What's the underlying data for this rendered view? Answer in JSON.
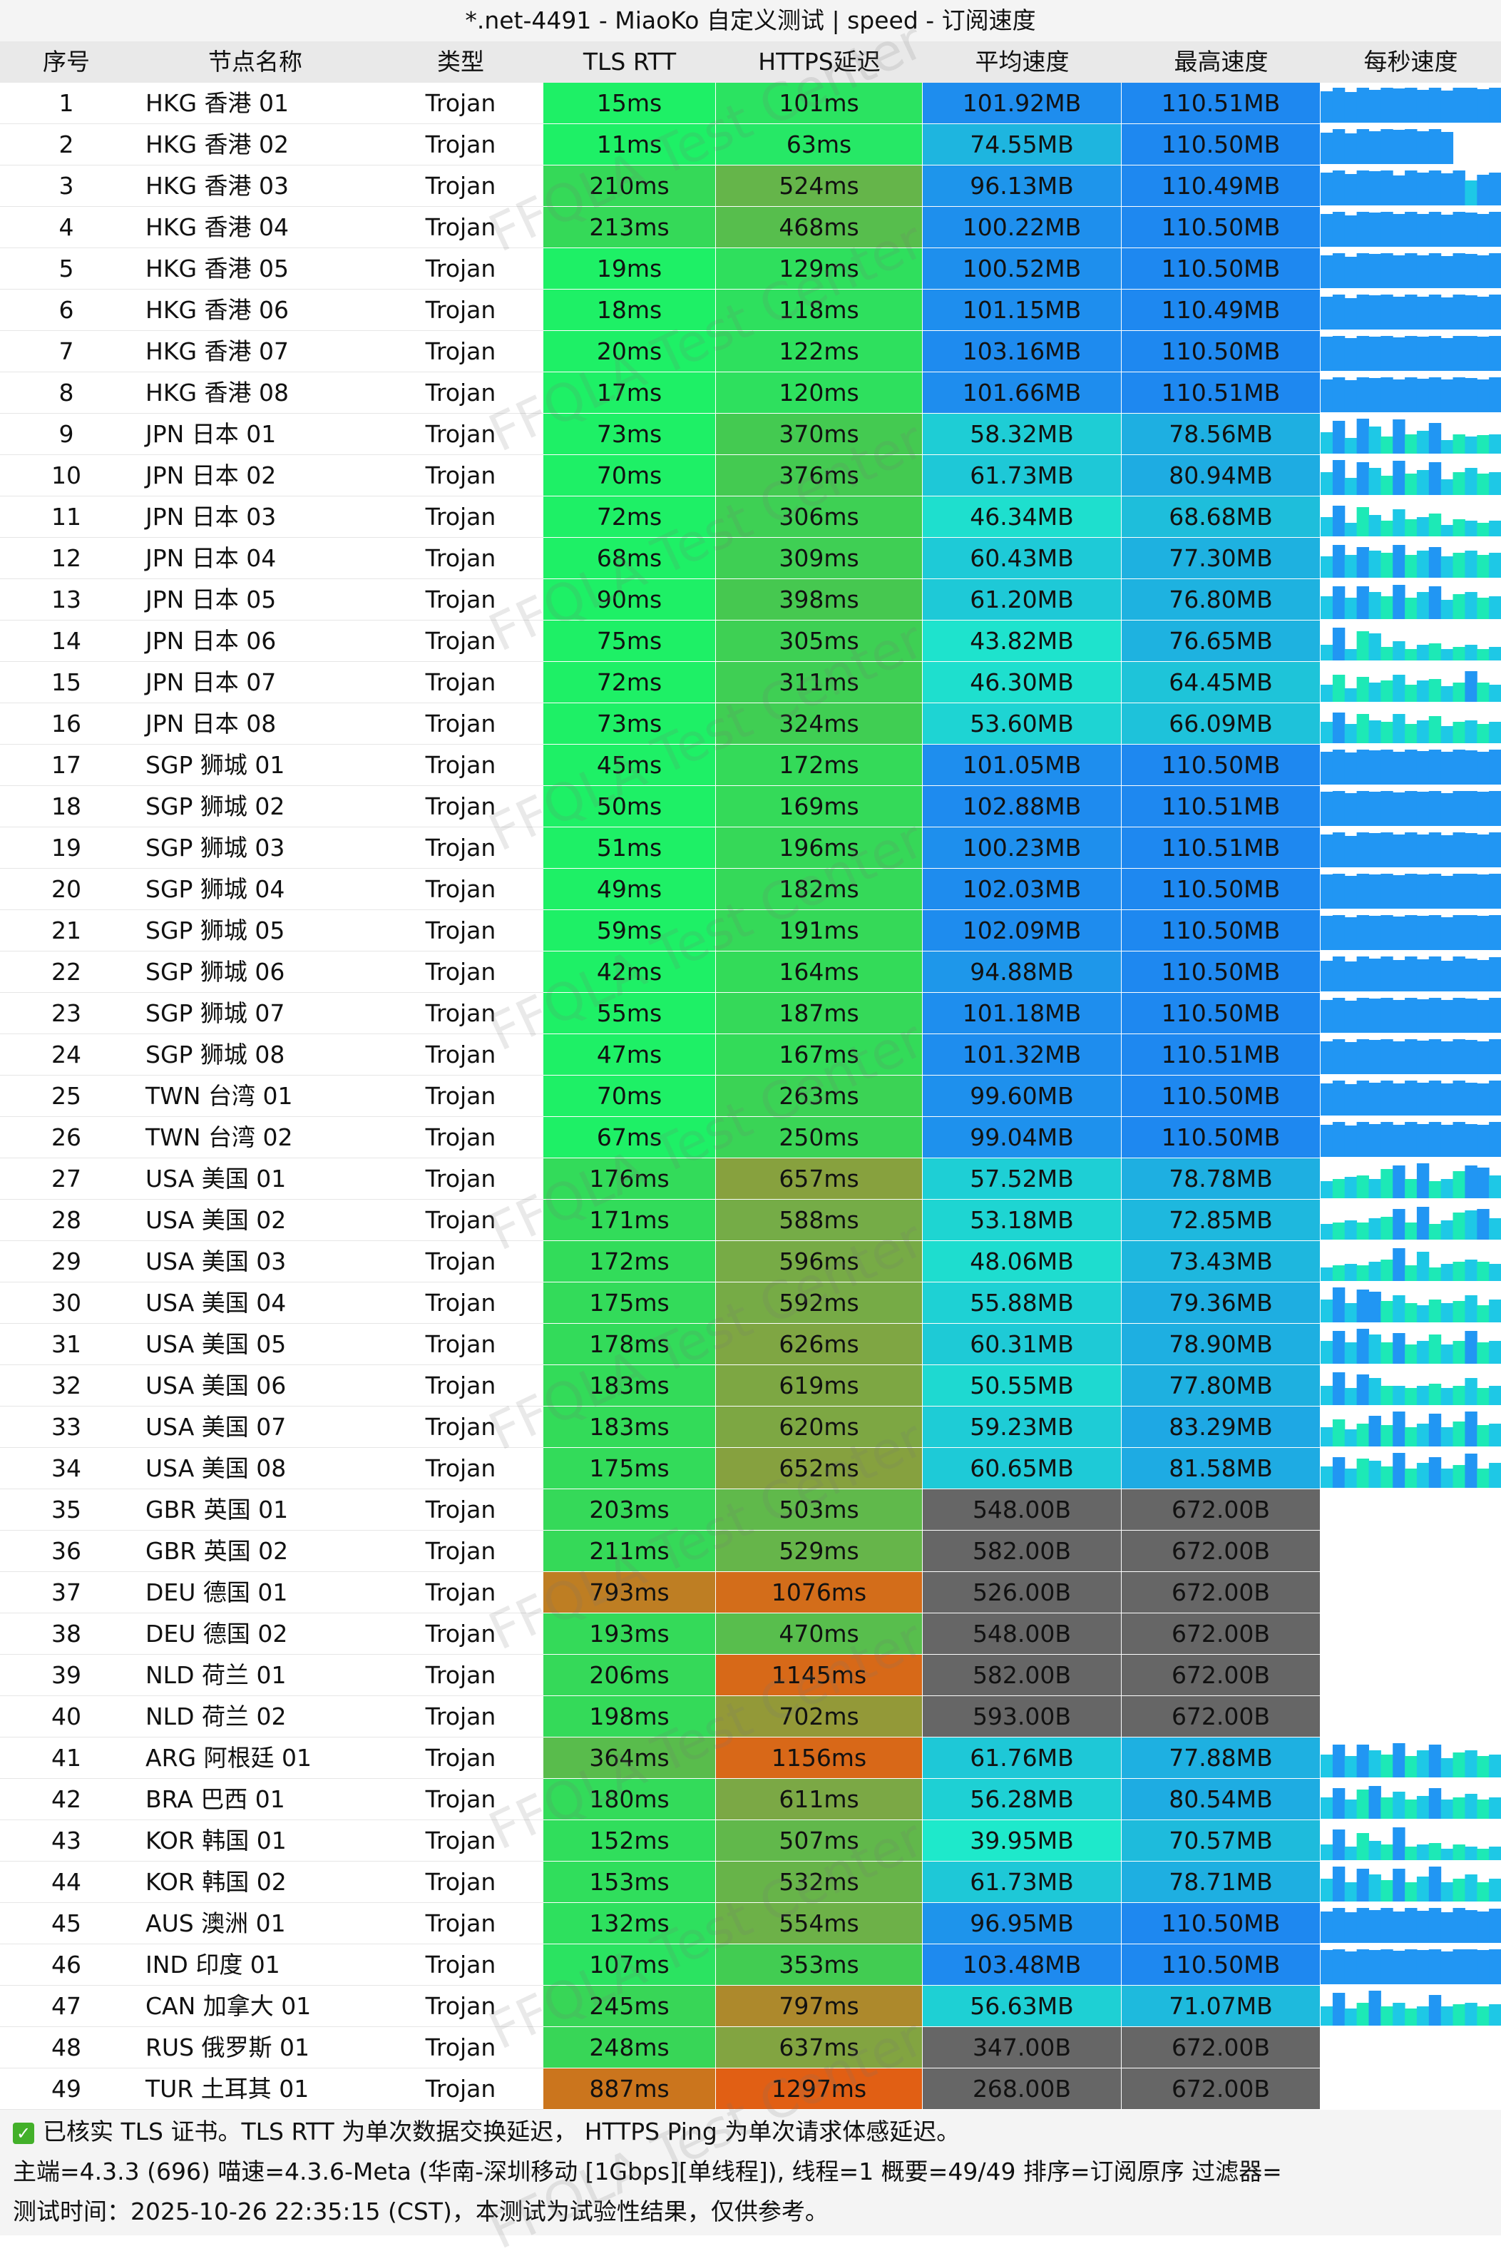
{
  "title": "*.net-4491 - MiaoKo 自定义测试 | speed - 订阅速度",
  "headers": [
    "序号",
    "节点名称",
    "类型",
    "TLS RTT",
    "HTTPS延迟",
    "平均速度",
    "最高速度",
    "每秒速度"
  ],
  "rows": [
    {
      "idx": "1",
      "name": "HKG 香港 01",
      "type": "Trojan",
      "tls": "15ms",
      "https": "101ms",
      "avg": "101.92MB",
      "max": "110.51MB",
      "spark": [
        0.82,
        0.9,
        0.8,
        0.9,
        0.85,
        0.9,
        0.88,
        0.9,
        0.86,
        0.9,
        0.84,
        0.9,
        0.9,
        0.87,
        0.9
      ]
    },
    {
      "idx": "2",
      "name": "HKG 香港 02",
      "type": "Trojan",
      "tls": "11ms",
      "https": "63ms",
      "avg": "74.55MB",
      "max": "110.50MB",
      "spark": [
        0.82,
        0.9,
        0.8,
        0.9,
        0.85,
        0.9,
        0.88,
        0.9,
        0.86,
        0.9,
        0.84,
        0,
        0,
        0,
        0
      ]
    },
    {
      "idx": "3",
      "name": "HKG 香港 03",
      "type": "Trojan",
      "tls": "210ms",
      "https": "524ms",
      "avg": "96.13MB",
      "max": "110.49MB",
      "spark": [
        0.85,
        0.9,
        0.82,
        0.9,
        0.88,
        0.9,
        0.78,
        0.9,
        0.86,
        0.9,
        0.84,
        0.9,
        0.65,
        0.8,
        0.85
      ]
    },
    {
      "idx": "4",
      "name": "HKG 香港 04",
      "type": "Trojan",
      "tls": "213ms",
      "https": "468ms",
      "avg": "100.22MB",
      "max": "110.50MB",
      "spark": [
        0.85,
        0.9,
        0.82,
        0.9,
        0.88,
        0.9,
        0.85,
        0.9,
        0.86,
        0.9,
        0.84,
        0.9,
        0.88,
        0.85,
        0.9
      ]
    },
    {
      "idx": "5",
      "name": "HKG 香港 05",
      "type": "Trojan",
      "tls": "19ms",
      "https": "129ms",
      "avg": "100.52MB",
      "max": "110.50MB",
      "spark": [
        0.85,
        0.9,
        0.82,
        0.9,
        0.88,
        0.9,
        0.85,
        0.9,
        0.86,
        0.9,
        0.84,
        0.9,
        0.88,
        0.85,
        0.9
      ]
    },
    {
      "idx": "6",
      "name": "HKG 香港 06",
      "type": "Trojan",
      "tls": "18ms",
      "https": "118ms",
      "avg": "101.15MB",
      "max": "110.49MB",
      "spark": [
        0.85,
        0.9,
        0.82,
        0.9,
        0.88,
        0.9,
        0.85,
        0.9,
        0.86,
        0.9,
        0.84,
        0.9,
        0.88,
        0.85,
        0.9
      ]
    },
    {
      "idx": "7",
      "name": "HKG 香港 07",
      "type": "Trojan",
      "tls": "20ms",
      "https": "122ms",
      "avg": "103.16MB",
      "max": "110.50MB",
      "spark": [
        0.88,
        0.9,
        0.86,
        0.9,
        0.88,
        0.9,
        0.87,
        0.9,
        0.88,
        0.9,
        0.86,
        0.9,
        0.9,
        0.88,
        0.9
      ]
    },
    {
      "idx": "8",
      "name": "HKG 香港 08",
      "type": "Trojan",
      "tls": "17ms",
      "https": "120ms",
      "avg": "101.66MB",
      "max": "110.51MB",
      "spark": [
        0.86,
        0.9,
        0.84,
        0.9,
        0.88,
        0.9,
        0.86,
        0.9,
        0.87,
        0.9,
        0.85,
        0.9,
        0.88,
        0.86,
        0.9
      ]
    },
    {
      "idx": "9",
      "name": "JPN 日本 01",
      "type": "Trojan",
      "tls": "73ms",
      "https": "370ms",
      "avg": "58.32MB",
      "max": "78.56MB",
      "spark": [
        0.55,
        0.85,
        0.4,
        0.9,
        0.7,
        0.45,
        0.88,
        0.5,
        0.6,
        0.8,
        0.35,
        0.5,
        0.45,
        0.48,
        0.5
      ]
    },
    {
      "idx": "10",
      "name": "JPN 日本 02",
      "type": "Trojan",
      "tls": "70ms",
      "https": "376ms",
      "avg": "61.73MB",
      "max": "80.94MB",
      "spark": [
        0.6,
        0.9,
        0.45,
        0.85,
        0.7,
        0.5,
        0.88,
        0.55,
        0.65,
        0.85,
        0.4,
        0.6,
        0.7,
        0.55,
        0.6
      ]
    },
    {
      "idx": "11",
      "name": "JPN 日本 03",
      "type": "Trojan",
      "tls": "72ms",
      "https": "306ms",
      "avg": "46.34MB",
      "max": "68.68MB",
      "spark": [
        0.5,
        0.8,
        0.35,
        0.75,
        0.55,
        0.4,
        0.7,
        0.45,
        0.5,
        0.6,
        0.3,
        0.45,
        0.4,
        0.35,
        0.4
      ]
    },
    {
      "idx": "12",
      "name": "JPN 日本 04",
      "type": "Trojan",
      "tls": "68ms",
      "https": "309ms",
      "avg": "60.43MB",
      "max": "77.30MB",
      "spark": [
        0.55,
        0.85,
        0.6,
        0.8,
        0.7,
        0.65,
        0.85,
        0.6,
        0.7,
        0.8,
        0.55,
        0.65,
        0.7,
        0.6,
        0.65
      ]
    },
    {
      "idx": "13",
      "name": "JPN 日本 05",
      "type": "Trojan",
      "tls": "90ms",
      "https": "398ms",
      "avg": "61.20MB",
      "max": "76.80MB",
      "spark": [
        0.6,
        0.85,
        0.55,
        0.85,
        0.7,
        0.6,
        0.88,
        0.55,
        0.7,
        0.85,
        0.5,
        0.65,
        0.7,
        0.55,
        0.6
      ]
    },
    {
      "idx": "14",
      "name": "JPN 日本 06",
      "type": "Trojan",
      "tls": "75ms",
      "https": "305ms",
      "avg": "43.82MB",
      "max": "76.65MB",
      "spark": [
        0.4,
        0.85,
        0.3,
        0.75,
        0.7,
        0.35,
        0.5,
        0.3,
        0.4,
        0.45,
        0.3,
        0.35,
        0.4,
        0.3,
        0.35
      ]
    },
    {
      "idx": "15",
      "name": "JPN 日本 07",
      "type": "Trojan",
      "tls": "72ms",
      "https": "311ms",
      "avg": "46.30MB",
      "max": "64.45MB",
      "spark": [
        0.45,
        0.7,
        0.35,
        0.65,
        0.5,
        0.55,
        0.7,
        0.45,
        0.55,
        0.6,
        0.4,
        0.5,
        0.8,
        0.5,
        0.45
      ]
    },
    {
      "idx": "16",
      "name": "JPN 日本 08",
      "type": "Trojan",
      "tls": "73ms",
      "https": "324ms",
      "avg": "53.60MB",
      "max": "66.09MB",
      "spark": [
        0.55,
        0.8,
        0.5,
        0.75,
        0.6,
        0.55,
        0.75,
        0.5,
        0.6,
        0.7,
        0.45,
        0.55,
        0.6,
        0.5,
        0.55
      ]
    },
    {
      "idx": "17",
      "name": "SGP 狮城 01",
      "type": "Trojan",
      "tls": "45ms",
      "https": "172ms",
      "avg": "101.05MB",
      "max": "110.50MB",
      "spark": [
        0.86,
        0.9,
        0.84,
        0.9,
        0.88,
        0.9,
        0.86,
        0.9,
        0.87,
        0.9,
        0.85,
        0.9,
        0.88,
        0.86,
        0.9
      ]
    },
    {
      "idx": "18",
      "name": "SGP 狮城 02",
      "type": "Trojan",
      "tls": "50ms",
      "https": "169ms",
      "avg": "102.88MB",
      "max": "110.51MB",
      "spark": [
        0.88,
        0.9,
        0.86,
        0.9,
        0.88,
        0.9,
        0.87,
        0.9,
        0.88,
        0.9,
        0.86,
        0.9,
        0.9,
        0.88,
        0.9
      ]
    },
    {
      "idx": "19",
      "name": "SGP 狮城 03",
      "type": "Trojan",
      "tls": "51ms",
      "https": "196ms",
      "avg": "100.23MB",
      "max": "110.51MB",
      "spark": [
        0.85,
        0.9,
        0.82,
        0.9,
        0.88,
        0.9,
        0.85,
        0.9,
        0.86,
        0.9,
        0.84,
        0.9,
        0.88,
        0.85,
        0.9
      ]
    },
    {
      "idx": "20",
      "name": "SGP 狮城 04",
      "type": "Trojan",
      "tls": "49ms",
      "https": "182ms",
      "avg": "102.03MB",
      "max": "110.50MB",
      "spark": [
        0.88,
        0.9,
        0.86,
        0.9,
        0.88,
        0.9,
        0.87,
        0.9,
        0.88,
        0.9,
        0.86,
        0.9,
        0.9,
        0.88,
        0.9
      ]
    },
    {
      "idx": "21",
      "name": "SGP 狮城 05",
      "type": "Trojan",
      "tls": "59ms",
      "https": "191ms",
      "avg": "102.09MB",
      "max": "110.50MB",
      "spark": [
        0.88,
        0.9,
        0.86,
        0.9,
        0.88,
        0.9,
        0.87,
        0.9,
        0.88,
        0.9,
        0.86,
        0.9,
        0.9,
        0.88,
        0.9
      ]
    },
    {
      "idx": "22",
      "name": "SGP 狮城 06",
      "type": "Trojan",
      "tls": "42ms",
      "https": "164ms",
      "avg": "94.88MB",
      "max": "110.50MB",
      "spark": [
        0.8,
        0.9,
        0.78,
        0.9,
        0.85,
        0.9,
        0.82,
        0.9,
        0.84,
        0.9,
        0.8,
        0.9,
        0.85,
        0.82,
        0.88
      ]
    },
    {
      "idx": "23",
      "name": "SGP 狮城 07",
      "type": "Trojan",
      "tls": "55ms",
      "https": "187ms",
      "avg": "101.18MB",
      "max": "110.50MB",
      "spark": [
        0.86,
        0.9,
        0.84,
        0.9,
        0.88,
        0.9,
        0.86,
        0.9,
        0.87,
        0.9,
        0.85,
        0.9,
        0.88,
        0.86,
        0.9
      ]
    },
    {
      "idx": "24",
      "name": "SGP 狮城 08",
      "type": "Trojan",
      "tls": "47ms",
      "https": "167ms",
      "avg": "101.32MB",
      "max": "110.51MB",
      "spark": [
        0.86,
        0.9,
        0.84,
        0.9,
        0.88,
        0.9,
        0.86,
        0.9,
        0.87,
        0.9,
        0.85,
        0.9,
        0.88,
        0.86,
        0.9
      ]
    },
    {
      "idx": "25",
      "name": "TWN 台湾 01",
      "type": "Trojan",
      "tls": "70ms",
      "https": "263ms",
      "avg": "99.60MB",
      "max": "110.50MB",
      "spark": [
        0.84,
        0.9,
        0.82,
        0.9,
        0.86,
        0.9,
        0.84,
        0.9,
        0.85,
        0.9,
        0.83,
        0.9,
        0.86,
        0.84,
        0.9
      ]
    },
    {
      "idx": "26",
      "name": "TWN 台湾 02",
      "type": "Trojan",
      "tls": "67ms",
      "https": "250ms",
      "avg": "99.04MB",
      "max": "110.50MB",
      "spark": [
        0.84,
        0.9,
        0.82,
        0.9,
        0.86,
        0.9,
        0.84,
        0.9,
        0.85,
        0.9,
        0.83,
        0.9,
        0.86,
        0.84,
        0.9
      ]
    },
    {
      "idx": "27",
      "name": "USA 美国 01",
      "type": "Trojan",
      "tls": "176ms",
      "https": "657ms",
      "avg": "57.52MB",
      "max": "78.78MB",
      "spark": [
        0.45,
        0.5,
        0.55,
        0.6,
        0.5,
        0.75,
        0.85,
        0.5,
        0.9,
        0.45,
        0.5,
        0.7,
        0.85,
        0.8,
        0.6
      ]
    },
    {
      "idx": "28",
      "name": "USA 美国 02",
      "type": "Trojan",
      "tls": "171ms",
      "https": "588ms",
      "avg": "53.18MB",
      "max": "72.85MB",
      "spark": [
        0.4,
        0.45,
        0.5,
        0.45,
        0.55,
        0.6,
        0.8,
        0.45,
        0.85,
        0.4,
        0.5,
        0.7,
        0.75,
        0.8,
        0.55
      ]
    },
    {
      "idx": "29",
      "name": "USA 美国 03",
      "type": "Trojan",
      "tls": "172ms",
      "https": "596ms",
      "avg": "48.06MB",
      "max": "73.43MB",
      "spark": [
        0.35,
        0.4,
        0.45,
        0.4,
        0.5,
        0.55,
        0.85,
        0.4,
        0.75,
        0.35,
        0.45,
        0.5,
        0.55,
        0.5,
        0.45
      ]
    },
    {
      "idx": "30",
      "name": "USA 美国 04",
      "type": "Trojan",
      "tls": "175ms",
      "https": "592ms",
      "avg": "55.88MB",
      "max": "79.36MB",
      "spark": [
        0.6,
        0.9,
        0.5,
        0.85,
        0.8,
        0.55,
        0.7,
        0.5,
        0.45,
        0.6,
        0.5,
        0.55,
        0.7,
        0.45,
        0.6
      ]
    },
    {
      "idx": "31",
      "name": "USA 美国 05",
      "type": "Trojan",
      "tls": "178ms",
      "https": "626ms",
      "avg": "60.31MB",
      "max": "78.90MB",
      "spark": [
        0.6,
        0.85,
        0.55,
        0.9,
        0.75,
        0.55,
        0.8,
        0.5,
        0.6,
        0.75,
        0.5,
        0.6,
        0.85,
        0.55,
        0.6
      ]
    },
    {
      "idx": "32",
      "name": "USA 美国 06",
      "type": "Trojan",
      "tls": "183ms",
      "https": "619ms",
      "avg": "50.55MB",
      "max": "77.80MB",
      "spark": [
        0.5,
        0.85,
        0.45,
        0.8,
        0.7,
        0.5,
        0.5,
        0.45,
        0.5,
        0.55,
        0.45,
        0.5,
        0.7,
        0.45,
        0.5
      ]
    },
    {
      "idx": "33",
      "name": "USA 美国 07",
      "type": "Trojan",
      "tls": "183ms",
      "https": "620ms",
      "avg": "59.23MB",
      "max": "83.29MB",
      "spark": [
        0.5,
        0.7,
        0.45,
        0.6,
        0.8,
        0.55,
        0.9,
        0.5,
        0.6,
        0.85,
        0.5,
        0.65,
        0.9,
        0.55,
        0.6
      ]
    },
    {
      "idx": "34",
      "name": "USA 美国 08",
      "type": "Trojan",
      "tls": "175ms",
      "https": "652ms",
      "avg": "60.65MB",
      "max": "81.58MB",
      "spark": [
        0.55,
        0.8,
        0.5,
        0.75,
        0.7,
        0.55,
        0.9,
        0.5,
        0.65,
        0.8,
        0.5,
        0.6,
        0.88,
        0.5,
        0.65
      ]
    },
    {
      "idx": "35",
      "name": "GBR 英国 01",
      "type": "Trojan",
      "tls": "203ms",
      "https": "503ms",
      "avg": "548.00B",
      "max": "672.00B",
      "spark": []
    },
    {
      "idx": "36",
      "name": "GBR 英国 02",
      "type": "Trojan",
      "tls": "211ms",
      "https": "529ms",
      "avg": "582.00B",
      "max": "672.00B",
      "spark": []
    },
    {
      "idx": "37",
      "name": "DEU 德国 01",
      "type": "Trojan",
      "tls": "793ms",
      "https": "1076ms",
      "avg": "526.00B",
      "max": "672.00B",
      "spark": []
    },
    {
      "idx": "38",
      "name": "DEU 德国 02",
      "type": "Trojan",
      "tls": "193ms",
      "https": "470ms",
      "avg": "548.00B",
      "max": "672.00B",
      "spark": []
    },
    {
      "idx": "39",
      "name": "NLD 荷兰 01",
      "type": "Trojan",
      "tls": "206ms",
      "https": "1145ms",
      "avg": "582.00B",
      "max": "672.00B",
      "spark": []
    },
    {
      "idx": "40",
      "name": "NLD 荷兰 02",
      "type": "Trojan",
      "tls": "198ms",
      "https": "702ms",
      "avg": "593.00B",
      "max": "672.00B",
      "spark": []
    },
    {
      "idx": "41",
      "name": "ARG 阿根廷 01",
      "type": "Trojan",
      "tls": "364ms",
      "https": "1156ms",
      "avg": "61.76MB",
      "max": "77.88MB",
      "spark": [
        0.6,
        0.85,
        0.55,
        0.85,
        0.7,
        0.6,
        0.88,
        0.55,
        0.7,
        0.85,
        0.5,
        0.65,
        0.7,
        0.55,
        0.6
      ]
    },
    {
      "idx": "42",
      "name": "BRA 巴西 01",
      "type": "Trojan",
      "tls": "180ms",
      "https": "611ms",
      "avg": "56.28MB",
      "max": "80.54MB",
      "spark": [
        0.55,
        0.8,
        0.5,
        0.75,
        0.85,
        0.55,
        0.7,
        0.5,
        0.6,
        0.8,
        0.5,
        0.55,
        0.65,
        0.5,
        0.55
      ]
    },
    {
      "idx": "43",
      "name": "KOR 韩国 01",
      "type": "Trojan",
      "tls": "152ms",
      "https": "507ms",
      "avg": "39.95MB",
      "max": "70.57MB",
      "spark": [
        0.4,
        0.8,
        0.35,
        0.7,
        0.5,
        0.4,
        0.85,
        0.35,
        0.4,
        0.45,
        0.3,
        0.4,
        0.35,
        0.3,
        0.35
      ]
    },
    {
      "idx": "44",
      "name": "KOR 韩国 02",
      "type": "Trojan",
      "tls": "153ms",
      "https": "532ms",
      "avg": "61.73MB",
      "max": "78.71MB",
      "spark": [
        0.6,
        0.9,
        0.5,
        0.85,
        0.7,
        0.55,
        0.85,
        0.5,
        0.65,
        0.9,
        0.5,
        0.6,
        0.7,
        0.5,
        0.6
      ]
    },
    {
      "idx": "45",
      "name": "AUS 澳洲 01",
      "type": "Trojan",
      "tls": "132ms",
      "https": "554ms",
      "avg": "96.95MB",
      "max": "110.50MB",
      "spark": [
        0.82,
        0.9,
        0.8,
        0.9,
        0.85,
        0.9,
        0.82,
        0.9,
        0.84,
        0.9,
        0.8,
        0.9,
        0.85,
        0.82,
        0.88
      ]
    },
    {
      "idx": "46",
      "name": "IND 印度 01",
      "type": "Trojan",
      "tls": "107ms",
      "https": "353ms",
      "avg": "103.48MB",
      "max": "110.50MB",
      "spark": [
        0.88,
        0.9,
        0.86,
        0.9,
        0.88,
        0.9,
        0.87,
        0.9,
        0.88,
        0.9,
        0.86,
        0.9,
        0.9,
        0.88,
        0.9
      ]
    },
    {
      "idx": "47",
      "name": "CAN 加拿大 01",
      "type": "Trojan",
      "tls": "245ms",
      "https": "797ms",
      "avg": "56.63MB",
      "max": "71.07MB",
      "spark": [
        0.5,
        0.85,
        0.45,
        0.6,
        0.9,
        0.5,
        0.6,
        0.45,
        0.5,
        0.8,
        0.5,
        0.55,
        0.6,
        0.5,
        0.55
      ]
    },
    {
      "idx": "48",
      "name": "RUS 俄罗斯 01",
      "type": "Trojan",
      "tls": "248ms",
      "https": "637ms",
      "avg": "347.00B",
      "max": "672.00B",
      "spark": []
    },
    {
      "idx": "49",
      "name": "TUR 土耳其 01",
      "type": "Trojan",
      "tls": "887ms",
      "https": "1297ms",
      "avg": "268.00B",
      "max": "672.00B",
      "spark": []
    }
  ],
  "footer": {
    "line1": "已核实 TLS 证书。TLS RTT 为单次数据交换延迟， HTTPS Ping 为单次请求体感延迟。",
    "line2": "主端=4.3.3 (696) 喵速=4.3.6-Meta (华南-深圳移动 [1Gbps][单线程]), 线程=1 概要=49/49 排序=订阅原序 过滤器=",
    "line3": "测试时间：2025-10-26 22:35:15 (CST)，本测试为试验性结果，仅供参考。"
  },
  "watermark": "FFQLA Test Center",
  "colors": {
    "check": "#43b02a",
    "unavailable": "#666666",
    "speed_max": "#1e88f0",
    "speed_min": "#1ef0c8",
    "spark_blue": "#2196f3",
    "spark_teal": "#1de9b6"
  }
}
